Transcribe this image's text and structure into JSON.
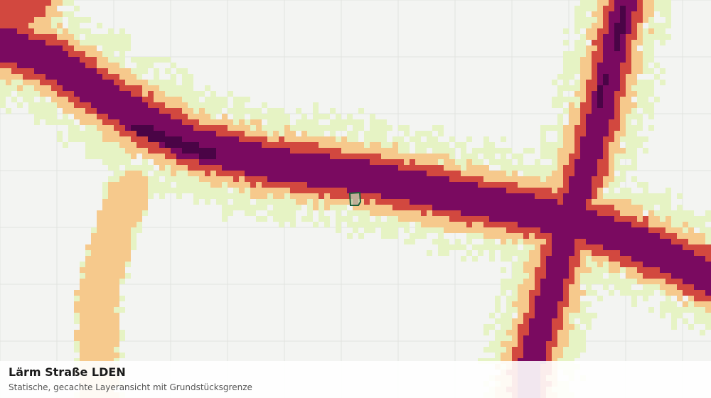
{
  "caption": {
    "title": "Lärm Straße LDEN",
    "subtitle": "Statische, gecachte Layeransicht mit Grundstücksgrenze"
  },
  "legend_colors": {
    "background": "#f3f4f2",
    "grid": "#e2e3e0",
    "class_1": "#e6f3c4",
    "class_2": "#f6c98c",
    "class_3": "#d2483f",
    "class_4": "#7a0a60",
    "class_5": "#4a0446",
    "parcel_outline": "#1f5e3a",
    "parcel_fill": "#b9d8bf"
  }
}
